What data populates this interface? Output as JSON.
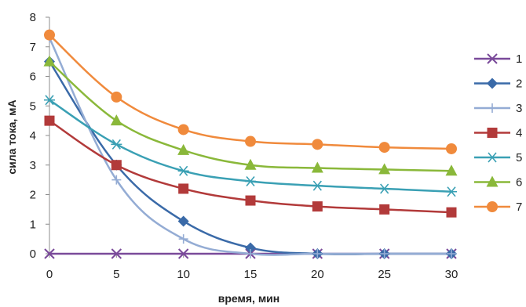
{
  "chart_data": {
    "type": "line",
    "title": "",
    "xlabel": "время, мин",
    "ylabel": "сила тока, мА",
    "x": [
      0,
      5,
      10,
      15,
      20,
      25,
      30
    ],
    "xlim": [
      0,
      30
    ],
    "ylim": [
      0,
      8
    ],
    "x_ticks": [
      "0",
      "5",
      "10",
      "15",
      "20",
      "25",
      "30"
    ],
    "y_ticks": [
      "0",
      "1",
      "2",
      "3",
      "4",
      "5",
      "6",
      "7",
      "8"
    ],
    "grid": false,
    "smooth": true,
    "legend_position": "right",
    "series": [
      {
        "name": "1",
        "color": "#7a4a9a",
        "marker": "x",
        "values": [
          0,
          0,
          0,
          0,
          0,
          0,
          0
        ]
      },
      {
        "name": "2",
        "color": "#3a6aa8",
        "marker": "diamond",
        "values": [
          6.5,
          3.0,
          1.1,
          0.2,
          0,
          0,
          0
        ]
      },
      {
        "name": "3",
        "color": "#94acd4",
        "marker": "plus",
        "values": [
          7.3,
          2.5,
          0.5,
          0,
          0,
          0,
          0
        ]
      },
      {
        "name": "4",
        "color": "#b23a3a",
        "marker": "square",
        "values": [
          4.5,
          3.0,
          2.2,
          1.8,
          1.6,
          1.5,
          1.4
        ]
      },
      {
        "name": "5",
        "color": "#3aa0b4",
        "marker": "asterisk",
        "values": [
          5.2,
          3.7,
          2.8,
          2.45,
          2.3,
          2.2,
          2.1
        ]
      },
      {
        "name": "6",
        "color": "#8ab83a",
        "marker": "triangle",
        "values": [
          6.5,
          4.5,
          3.5,
          3.0,
          2.9,
          2.85,
          2.8
        ]
      },
      {
        "name": "7",
        "color": "#f08a3c",
        "marker": "circle",
        "values": [
          7.4,
          5.3,
          4.2,
          3.8,
          3.7,
          3.6,
          3.55
        ]
      }
    ]
  }
}
